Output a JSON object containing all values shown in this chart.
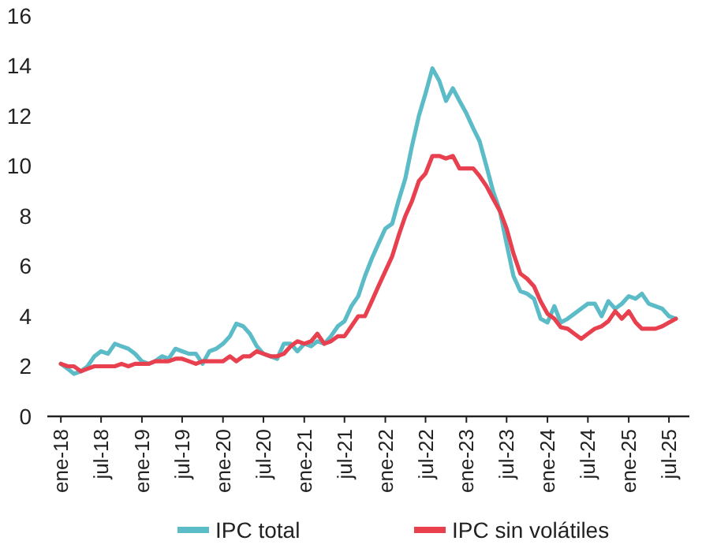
{
  "chart_data": {
    "type": "line",
    "x": [
      "2018-01",
      "2018-02",
      "2018-03",
      "2018-04",
      "2018-05",
      "2018-06",
      "2018-07",
      "2018-08",
      "2018-09",
      "2018-10",
      "2018-11",
      "2018-12",
      "2019-01",
      "2019-02",
      "2019-03",
      "2019-04",
      "2019-05",
      "2019-06",
      "2019-07",
      "2019-08",
      "2019-09",
      "2019-10",
      "2019-11",
      "2019-12",
      "2020-01",
      "2020-02",
      "2020-03",
      "2020-04",
      "2020-05",
      "2020-06",
      "2020-07",
      "2020-08",
      "2020-09",
      "2020-10",
      "2020-11",
      "2020-12",
      "2021-01",
      "2021-02",
      "2021-03",
      "2021-04",
      "2021-05",
      "2021-06",
      "2021-07",
      "2021-08",
      "2021-09",
      "2021-10",
      "2021-11",
      "2021-12",
      "2022-01",
      "2022-02",
      "2022-03",
      "2022-04",
      "2022-05",
      "2022-06",
      "2022-07",
      "2022-08",
      "2022-09",
      "2022-10",
      "2022-11",
      "2022-12",
      "2023-01",
      "2023-02",
      "2023-03",
      "2023-04",
      "2023-05",
      "2023-06",
      "2023-07",
      "2023-08",
      "2023-09",
      "2023-10",
      "2023-11",
      "2023-12",
      "2024-01",
      "2024-02",
      "2024-03",
      "2024-04",
      "2024-05",
      "2024-06",
      "2024-07",
      "2024-08",
      "2024-09",
      "2024-10",
      "2024-11",
      "2024-12",
      "2025-01",
      "2025-02",
      "2025-03",
      "2025-04",
      "2025-05",
      "2025-06",
      "2025-07",
      "2025-08"
    ],
    "series": [
      {
        "name": "IPC total",
        "color": "#5bbcc8",
        "values": [
          2.1,
          1.9,
          1.7,
          1.8,
          2.0,
          2.4,
          2.6,
          2.5,
          2.9,
          2.8,
          2.7,
          2.5,
          2.2,
          2.1,
          2.2,
          2.4,
          2.3,
          2.7,
          2.6,
          2.5,
          2.5,
          2.1,
          2.6,
          2.7,
          2.9,
          3.2,
          3.7,
          3.6,
          3.3,
          2.8,
          2.5,
          2.4,
          2.3,
          2.9,
          2.9,
          2.6,
          2.9,
          2.8,
          3.0,
          2.9,
          3.2,
          3.6,
          3.8,
          4.4,
          4.8,
          5.6,
          6.3,
          6.9,
          7.5,
          7.7,
          8.6,
          9.5,
          10.8,
          12.0,
          12.9,
          13.9,
          13.4,
          12.6,
          13.1,
          12.6,
          12.1,
          11.5,
          11.0,
          10.0,
          9.0,
          8.2,
          6.9,
          5.6,
          5.0,
          4.9,
          4.7,
          3.9,
          3.75,
          4.4,
          3.75,
          3.9,
          4.1,
          4.3,
          4.5,
          4.5,
          4.0,
          4.6,
          4.3,
          4.5,
          4.8,
          4.7,
          4.9,
          4.5,
          4.4,
          4.3,
          4.0,
          3.9
        ]
      },
      {
        "name": "IPC sin volátiles",
        "color": "#e8404e",
        "values": [
          2.1,
          2.0,
          2.0,
          1.8,
          1.9,
          2.0,
          2.0,
          2.0,
          2.0,
          2.1,
          2.0,
          2.1,
          2.1,
          2.1,
          2.2,
          2.2,
          2.2,
          2.3,
          2.3,
          2.2,
          2.1,
          2.2,
          2.2,
          2.2,
          2.2,
          2.4,
          2.2,
          2.4,
          2.4,
          2.6,
          2.5,
          2.4,
          2.4,
          2.5,
          2.8,
          3.0,
          2.9,
          3.0,
          3.3,
          2.9,
          3.0,
          3.2,
          3.2,
          3.6,
          4.0,
          4.0,
          4.6,
          5.2,
          5.8,
          6.4,
          7.2,
          8.0,
          8.6,
          9.4,
          9.7,
          10.4,
          10.4,
          10.3,
          10.4,
          9.9,
          9.9,
          9.9,
          9.6,
          9.2,
          8.7,
          8.2,
          7.5,
          6.5,
          5.7,
          5.5,
          5.2,
          4.6,
          4.1,
          3.9,
          3.56,
          3.5,
          3.3,
          3.1,
          3.3,
          3.5,
          3.6,
          3.8,
          4.2,
          3.9,
          4.2,
          3.75,
          3.5,
          3.5,
          3.5,
          3.6,
          3.75,
          3.9
        ]
      }
    ],
    "xlim": [
      "2017-11",
      "2025-10"
    ],
    "xticks": [
      {
        "value": "2018-01",
        "label": "ene-18"
      },
      {
        "value": "2018-07",
        "label": "jul-18"
      },
      {
        "value": "2019-01",
        "label": "ene-19"
      },
      {
        "value": "2019-07",
        "label": "jul-19"
      },
      {
        "value": "2020-01",
        "label": "ene-20"
      },
      {
        "value": "2020-07",
        "label": "jul-20"
      },
      {
        "value": "2021-01",
        "label": "ene-21"
      },
      {
        "value": "2021-07",
        "label": "jul-21"
      },
      {
        "value": "2022-01",
        "label": "ene-22"
      },
      {
        "value": "2022-07",
        "label": "jul-22"
      },
      {
        "value": "2023-01",
        "label": "ene-23"
      },
      {
        "value": "2023-07",
        "label": "jul-23"
      },
      {
        "value": "2024-01",
        "label": "ene-24"
      },
      {
        "value": "2024-07",
        "label": "jul-24"
      },
      {
        "value": "2025-01",
        "label": "ene-25"
      },
      {
        "value": "2025-07",
        "label": "jul-25"
      }
    ],
    "ylim": [
      0,
      16
    ],
    "yticks": [
      0,
      2,
      4,
      6,
      8,
      10,
      12,
      14,
      16
    ],
    "grid": false,
    "legend": "bottom",
    "line_style": "solid",
    "marker": "none"
  }
}
